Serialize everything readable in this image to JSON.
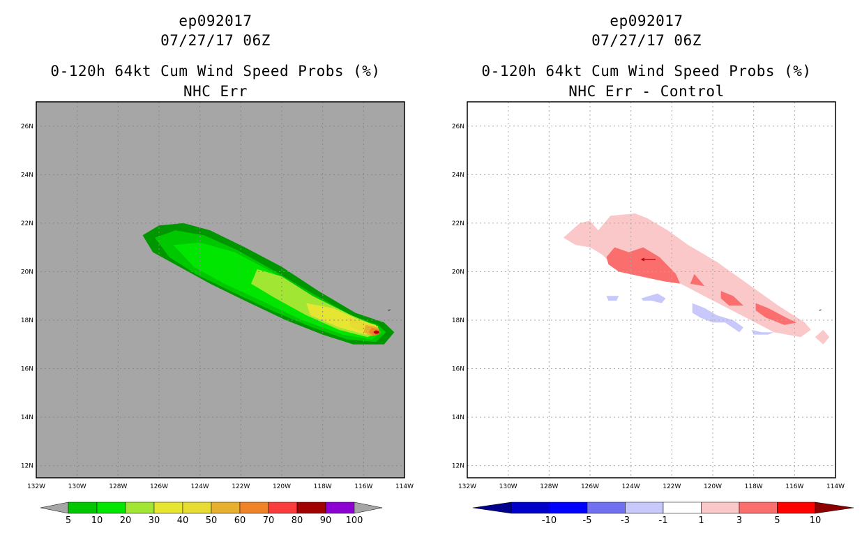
{
  "panels": {
    "left": {
      "storm_id": "ep092017",
      "datetime": "07/27/17 06Z",
      "product": "0-120h 64kt Cum Wind Speed Probs (%)",
      "subtitle": "NHC Err",
      "colorbar": {
        "labels": [
          "5",
          "10",
          "20",
          "30",
          "40",
          "50",
          "60",
          "70",
          "80",
          "90",
          "100"
        ],
        "colors": [
          "#009600",
          "#00c800",
          "#00e600",
          "#a0e632",
          "#e6e632",
          "#e6dc32",
          "#e6af2d",
          "#f08228",
          "#fa3c3c",
          "#a00000",
          "#8c00d2"
        ],
        "end_color": "#a6a6a6"
      },
      "background_color": "#a6a6a6"
    },
    "right": {
      "storm_id": "ep092017",
      "datetime": "07/27/17 06Z",
      "product": "0-120h 64kt Cum Wind Speed Probs (%)",
      "subtitle": "NHC Err - Control",
      "colorbar": {
        "labels": [
          "-10",
          "-5",
          "-3",
          "-1",
          "1",
          "3",
          "5",
          "10"
        ],
        "colors": [
          "#0000c8",
          "#0000ff",
          "#7070f0",
          "#c8c8fa",
          "#ffffff",
          "#fac8c8",
          "#fa6e6e",
          "#ff0000"
        ],
        "end_left": "#00008c",
        "end_right": "#8c0000"
      },
      "background_color": "#ffffff"
    }
  },
  "axes": {
    "lon_labels": [
      "132W",
      "130W",
      "128W",
      "126W",
      "124W",
      "122W",
      "120W",
      "118W",
      "116W",
      "114W"
    ],
    "lat_labels": [
      "12N",
      "14N",
      "16N",
      "18N",
      "20N",
      "22N",
      "24N",
      "26N"
    ]
  },
  "map_data": {
    "lon_range": [
      -132,
      -114
    ],
    "lat_range": [
      11.5,
      27
    ],
    "left_fields": [
      {
        "level": "5-10",
        "color": "#009600",
        "polygon": [
          [
            -126.8,
            21.5
          ],
          [
            -126.0,
            21.9
          ],
          [
            -124.8,
            22.0
          ],
          [
            -123.5,
            21.7
          ],
          [
            -121.8,
            21.0
          ],
          [
            -120.0,
            20.2
          ],
          [
            -118.2,
            19.2
          ],
          [
            -116.4,
            18.3
          ],
          [
            -115.0,
            17.9
          ],
          [
            -114.5,
            17.5
          ],
          [
            -115.0,
            17.0
          ],
          [
            -116.5,
            17.0
          ],
          [
            -118.0,
            17.4
          ],
          [
            -119.8,
            18.0
          ],
          [
            -121.8,
            18.8
          ],
          [
            -123.5,
            19.5
          ],
          [
            -125.0,
            20.2
          ],
          [
            -126.3,
            20.8
          ]
        ]
      },
      {
        "level": "10-20",
        "color": "#00c800",
        "polygon": [
          [
            -126.2,
            21.4
          ],
          [
            -125.2,
            21.7
          ],
          [
            -123.8,
            21.5
          ],
          [
            -122.2,
            20.9
          ],
          [
            -120.3,
            20.0
          ],
          [
            -118.5,
            19.1
          ],
          [
            -116.6,
            18.2
          ],
          [
            -115.3,
            17.8
          ],
          [
            -114.9,
            17.5
          ],
          [
            -115.4,
            17.1
          ],
          [
            -116.8,
            17.2
          ],
          [
            -118.5,
            17.7
          ],
          [
            -120.5,
            18.4
          ],
          [
            -122.5,
            19.2
          ],
          [
            -124.2,
            19.9
          ],
          [
            -125.5,
            20.6
          ]
        ]
      },
      {
        "level": "20-30",
        "color": "#00e600",
        "polygon": [
          [
            -125.3,
            21.1
          ],
          [
            -124.0,
            21.2
          ],
          [
            -122.3,
            20.8
          ],
          [
            -120.5,
            20.0
          ],
          [
            -118.7,
            19.1
          ],
          [
            -116.8,
            18.2
          ],
          [
            -115.5,
            17.8
          ],
          [
            -115.1,
            17.5
          ],
          [
            -115.6,
            17.2
          ],
          [
            -117.0,
            17.4
          ],
          [
            -119.0,
            18.0
          ],
          [
            -121.0,
            18.8
          ],
          [
            -122.8,
            19.5
          ],
          [
            -124.3,
            20.2
          ]
        ]
      },
      {
        "level": "30-40",
        "color": "#a0e632",
        "polygon": [
          [
            -121.2,
            20.1
          ],
          [
            -120.0,
            19.8
          ],
          [
            -118.5,
            19.0
          ],
          [
            -116.6,
            18.2
          ],
          [
            -115.5,
            17.8
          ],
          [
            -115.3,
            17.5
          ],
          [
            -115.8,
            17.3
          ],
          [
            -117.2,
            17.6
          ],
          [
            -118.8,
            18.2
          ],
          [
            -120.3,
            18.9
          ],
          [
            -121.5,
            19.5
          ]
        ]
      },
      {
        "level": "40-50",
        "color": "#e6e632",
        "polygon": [
          [
            -118.8,
            18.7
          ],
          [
            -117.5,
            18.5
          ],
          [
            -116.2,
            18.0
          ],
          [
            -115.4,
            17.8
          ],
          [
            -115.3,
            17.5
          ],
          [
            -115.9,
            17.4
          ],
          [
            -117.2,
            17.7
          ],
          [
            -118.6,
            18.2
          ]
        ]
      },
      {
        "level": "50-60",
        "color": "#e6dc32",
        "polygon": [
          [
            -116.8,
            18.1
          ],
          [
            -116.0,
            17.9
          ],
          [
            -115.3,
            17.75
          ],
          [
            -115.25,
            17.5
          ],
          [
            -115.8,
            17.45
          ],
          [
            -116.6,
            17.7
          ]
        ]
      },
      {
        "level": "60-70",
        "color": "#e6af2d",
        "polygon": [
          [
            -115.9,
            17.8
          ],
          [
            -115.3,
            17.7
          ],
          [
            -115.2,
            17.5
          ],
          [
            -115.6,
            17.35
          ],
          [
            -116.0,
            17.5
          ]
        ]
      },
      {
        "level": "70-80",
        "color": "#f08228",
        "polygon": [
          [
            -115.6,
            17.7
          ],
          [
            -115.25,
            17.6
          ],
          [
            -115.2,
            17.45
          ],
          [
            -115.5,
            17.35
          ],
          [
            -115.75,
            17.5
          ]
        ]
      },
      {
        "level": "80-90",
        "color": "#fa3c3c",
        "polygon": [
          [
            -115.4,
            17.6
          ],
          [
            -115.22,
            17.55
          ],
          [
            -115.2,
            17.45
          ],
          [
            -115.4,
            17.4
          ],
          [
            -115.5,
            17.5
          ]
        ]
      }
    ],
    "right_fields": [
      {
        "level": "1-3",
        "color": "#fac8c8",
        "polygon": [
          [
            -127.3,
            21.4
          ],
          [
            -126.5,
            22.0
          ],
          [
            -126.0,
            22.1
          ],
          [
            -125.6,
            21.7
          ],
          [
            -125.0,
            22.3
          ],
          [
            -123.8,
            22.4
          ],
          [
            -123.2,
            22.2
          ],
          [
            -122.2,
            21.7
          ],
          [
            -121.2,
            21.1
          ],
          [
            -119.8,
            20.4
          ],
          [
            -118.3,
            19.5
          ],
          [
            -116.8,
            18.6
          ],
          [
            -115.5,
            17.9
          ],
          [
            -115.2,
            17.6
          ],
          [
            -115.7,
            17.3
          ],
          [
            -117.0,
            17.5
          ],
          [
            -118.6,
            18.2
          ],
          [
            -120.2,
            18.9
          ],
          [
            -121.8,
            19.6
          ],
          [
            -123.3,
            20.1
          ],
          [
            -124.8,
            20.2
          ],
          [
            -125.4,
            20.7
          ],
          [
            -126.0,
            21.0
          ],
          [
            -126.7,
            21.1
          ]
        ]
      },
      {
        "level": "1-3",
        "color": "#fac8c8",
        "polygon": [
          [
            -114.6,
            17.6
          ],
          [
            -114.3,
            17.3
          ],
          [
            -114.6,
            17.0
          ],
          [
            -115.0,
            17.3
          ]
        ]
      },
      {
        "level": "3-5",
        "color": "#fa6e6e",
        "polygon": [
          [
            -125.2,
            20.6
          ],
          [
            -124.8,
            21.0
          ],
          [
            -124.1,
            20.8
          ],
          [
            -123.4,
            21.0
          ],
          [
            -122.6,
            20.6
          ],
          [
            -121.8,
            19.9
          ],
          [
            -121.6,
            19.5
          ],
          [
            -122.4,
            19.6
          ],
          [
            -123.5,
            19.8
          ],
          [
            -124.6,
            20.0
          ],
          [
            -125.1,
            20.3
          ]
        ]
      },
      {
        "level": "3-5",
        "color": "#fa6e6e",
        "polygon": [
          [
            -120.9,
            19.9
          ],
          [
            -120.4,
            19.4
          ],
          [
            -121.1,
            19.5
          ]
        ]
      },
      {
        "level": "3-5",
        "color": "#fa6e6e",
        "polygon": [
          [
            -119.6,
            19.2
          ],
          [
            -119.0,
            19.0
          ],
          [
            -118.5,
            18.6
          ],
          [
            -119.2,
            18.6
          ],
          [
            -119.6,
            18.9
          ]
        ]
      },
      {
        "level": "3-5",
        "color": "#fa6e6e",
        "polygon": [
          [
            -117.9,
            18.7
          ],
          [
            -117.3,
            18.5
          ],
          [
            -116.4,
            18.1
          ],
          [
            -115.9,
            17.9
          ],
          [
            -116.5,
            17.8
          ],
          [
            -117.4,
            18.1
          ],
          [
            -117.9,
            18.4
          ]
        ]
      },
      {
        "level": "-3--1",
        "color": "#c8c8fa",
        "polygon": [
          [
            -125.2,
            19.0
          ],
          [
            -124.6,
            19.0
          ],
          [
            -124.7,
            18.8
          ],
          [
            -125.1,
            18.8
          ]
        ]
      },
      {
        "level": "-3--1",
        "color": "#c8c8fa",
        "polygon": [
          [
            -123.5,
            18.9
          ],
          [
            -122.7,
            19.1
          ],
          [
            -122.3,
            18.9
          ],
          [
            -122.5,
            18.7
          ],
          [
            -123.0,
            18.8
          ],
          [
            -123.4,
            18.8
          ]
        ]
      },
      {
        "level": "-3--1",
        "color": "#c8c8fa",
        "polygon": [
          [
            -121.0,
            18.7
          ],
          [
            -120.4,
            18.5
          ],
          [
            -119.8,
            18.2
          ],
          [
            -119.0,
            18.0
          ],
          [
            -118.5,
            17.7
          ],
          [
            -118.7,
            17.5
          ],
          [
            -119.4,
            17.9
          ],
          [
            -120.0,
            17.9
          ],
          [
            -120.6,
            18.1
          ],
          [
            -121.0,
            18.3
          ]
        ]
      },
      {
        "level": "-3--1",
        "color": "#c8c8fa",
        "polygon": [
          [
            -118.1,
            17.6
          ],
          [
            -117.6,
            17.5
          ],
          [
            -117.0,
            17.5
          ],
          [
            -117.3,
            17.4
          ],
          [
            -118.0,
            17.4
          ]
        ]
      }
    ],
    "storm_marker": [
      -123.1,
      20.5
    ],
    "coast_marker": [
      -114.8,
      18.4
    ]
  }
}
